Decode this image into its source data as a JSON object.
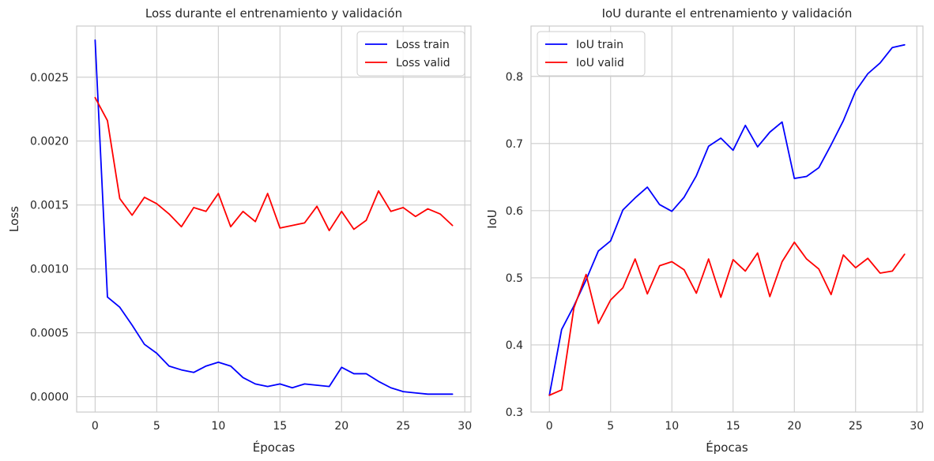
{
  "chart_data": [
    {
      "type": "line",
      "title": "Loss durante el entrenamiento y validación",
      "xlabel": "Épocas",
      "ylabel": "Loss",
      "xlim": [
        -1.5,
        30.5
      ],
      "ylim": [
        -0.00012,
        0.0029
      ],
      "xticks": [
        0,
        5,
        10,
        15,
        20,
        25,
        30
      ],
      "yticks": [
        0.0,
        0.0005,
        0.001,
        0.0015,
        0.002,
        0.0025
      ],
      "ytick_labels": [
        "0.0000",
        "0.0005",
        "0.0010",
        "0.0015",
        "0.0020",
        "0.0025"
      ],
      "grid": true,
      "legend": "top-right",
      "x": [
        0,
        1,
        2,
        3,
        4,
        5,
        6,
        7,
        8,
        9,
        10,
        11,
        12,
        13,
        14,
        15,
        16,
        17,
        18,
        19,
        20,
        21,
        22,
        23,
        24,
        25,
        26,
        27,
        28,
        29
      ],
      "series": [
        {
          "name": "Loss train",
          "color": "#0000ff",
          "values": [
            0.00279,
            0.00078,
            0.0007,
            0.00056,
            0.00041,
            0.00034,
            0.00024,
            0.00021,
            0.00019,
            0.00024,
            0.00027,
            0.00024,
            0.00015,
            0.0001,
            8e-05,
            0.0001,
            7e-05,
            0.0001,
            9e-05,
            8e-05,
            0.00023,
            0.00018,
            0.00018,
            0.00012,
            7e-05,
            4e-05,
            3e-05,
            2e-05,
            2e-05,
            2e-05
          ]
        },
        {
          "name": "Loss valid",
          "color": "#ff0000",
          "values": [
            0.00234,
            0.00216,
            0.00155,
            0.00142,
            0.00156,
            0.00151,
            0.00143,
            0.00133,
            0.00148,
            0.00145,
            0.00159,
            0.00133,
            0.00145,
            0.00137,
            0.00159,
            0.00132,
            0.00134,
            0.00136,
            0.00149,
            0.0013,
            0.00145,
            0.00131,
            0.00138,
            0.00161,
            0.00145,
            0.00148,
            0.00141,
            0.00147,
            0.00143,
            0.00134
          ]
        }
      ]
    },
    {
      "type": "line",
      "title": "IoU durante el entrenamiento y validación",
      "xlabel": "Épocas",
      "ylabel": "IoU",
      "xlim": [
        -1.5,
        30.5
      ],
      "ylim": [
        0.3,
        0.875
      ],
      "xticks": [
        0,
        5,
        10,
        15,
        20,
        25,
        30
      ],
      "yticks": [
        0.3,
        0.4,
        0.5,
        0.6,
        0.7,
        0.8
      ],
      "ytick_labels": [
        "0.3",
        "0.4",
        "0.5",
        "0.6",
        "0.7",
        "0.8"
      ],
      "grid": true,
      "legend": "top-left",
      "x": [
        0,
        1,
        2,
        3,
        4,
        5,
        6,
        7,
        8,
        9,
        10,
        11,
        12,
        13,
        14,
        15,
        16,
        17,
        18,
        19,
        20,
        21,
        22,
        23,
        24,
        25,
        26,
        27,
        28,
        29
      ],
      "series": [
        {
          "name": "IoU train",
          "color": "#0000ff",
          "values": [
            0.325,
            0.423,
            0.458,
            0.497,
            0.54,
            0.555,
            0.601,
            0.619,
            0.635,
            0.609,
            0.599,
            0.62,
            0.652,
            0.696,
            0.708,
            0.69,
            0.727,
            0.695,
            0.717,
            0.732,
            0.648,
            0.651,
            0.664,
            0.698,
            0.734,
            0.778,
            0.804,
            0.82,
            0.843,
            0.847
          ]
        },
        {
          "name": "IoU valid",
          "color": "#ff0000",
          "values": [
            0.325,
            0.333,
            0.455,
            0.505,
            0.432,
            0.467,
            0.485,
            0.528,
            0.476,
            0.518,
            0.524,
            0.512,
            0.477,
            0.528,
            0.471,
            0.527,
            0.51,
            0.537,
            0.472,
            0.524,
            0.553,
            0.528,
            0.513,
            0.475,
            0.534,
            0.515,
            0.529,
            0.507,
            0.51,
            0.535
          ]
        }
      ]
    }
  ]
}
